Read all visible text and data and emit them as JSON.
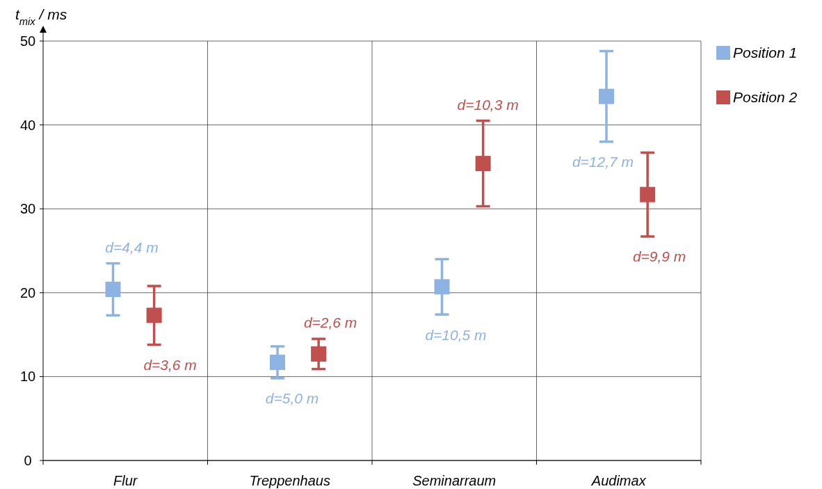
{
  "chart_data": {
    "type": "scatter",
    "ylabel": "t$_{mix}$ / ms",
    "categories": [
      "Flur",
      "Treppenhaus",
      "Seminarraum",
      "Audimax"
    ],
    "series": [
      {
        "name": "Position 1",
        "color": "#8db3e2",
        "values": [
          20.4,
          11.7,
          20.7,
          43.4
        ],
        "errors": [
          3.1,
          1.9,
          3.3,
          5.4
        ]
      },
      {
        "name": "Position 2",
        "color": "#c0504d",
        "values": [
          17.3,
          12.7,
          35.4,
          31.7
        ],
        "errors": [
          3.5,
          1.8,
          5.1,
          5.0
        ]
      }
    ],
    "annotations": [
      "d=4,4 m",
      "d=3,6 m",
      "d=5,0 m",
      "d=2,6 m",
      "d=10,5 m",
      "d=10,3 m",
      "d=12,7 m",
      "d=9,9 m"
    ],
    "ylim": [
      0,
      50
    ],
    "yticks": [
      0,
      10,
      20,
      30,
      40,
      50
    ],
    "grid": true,
    "legend": "top right",
    "marker": "square"
  }
}
